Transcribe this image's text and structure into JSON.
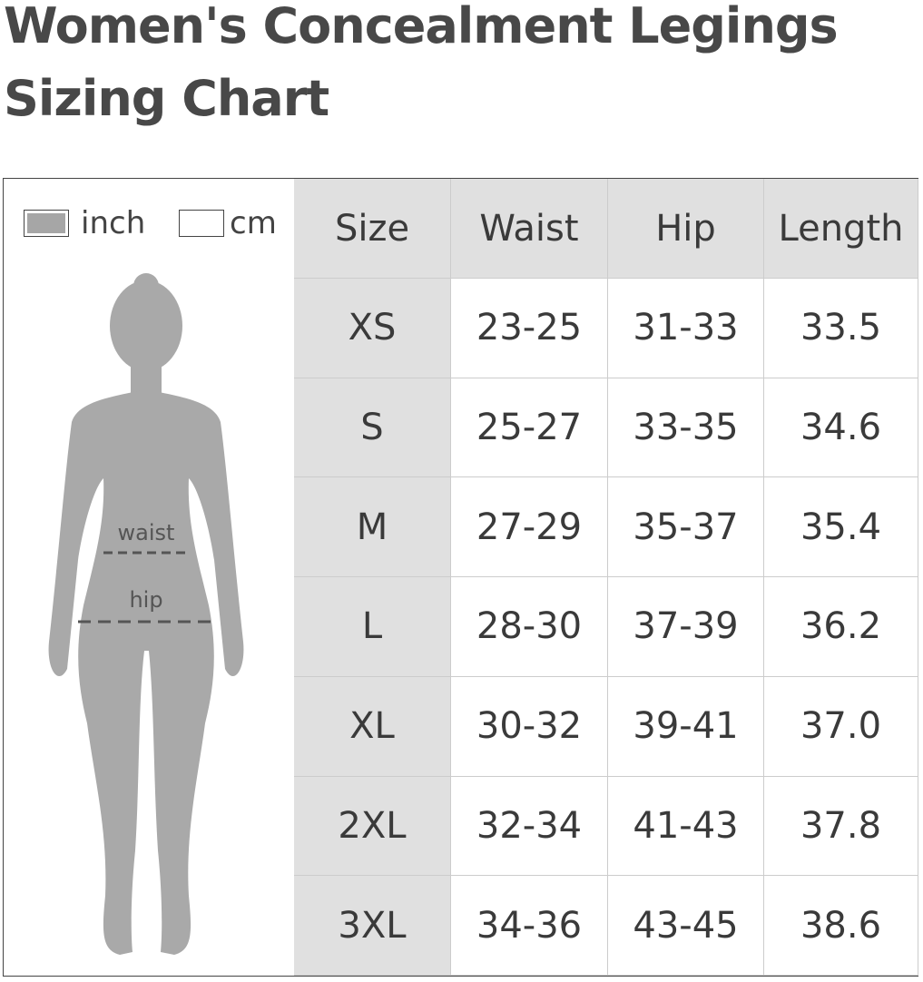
{
  "title_lines": [
    "Women's Concealment Legings",
    "Sizing Chart"
  ],
  "legend": {
    "items": [
      "inch",
      "cm"
    ]
  },
  "figure": {
    "labels": [
      "waist",
      "hip"
    ]
  },
  "table": {
    "header": [
      "Size",
      "Waist",
      "Hip",
      "Length"
    ],
    "rows": [
      [
        "XS",
        "23-25",
        "31-33",
        "33.5"
      ],
      [
        "S",
        "25-27",
        "33-35",
        "34.6"
      ],
      [
        "M",
        "27-29",
        "35-37",
        "35.4"
      ],
      [
        "L",
        "28-30",
        "37-39",
        "36.2"
      ],
      [
        "XL",
        "30-32",
        "39-41",
        "37.0"
      ],
      [
        "2XL",
        "32-34",
        "41-43",
        "37.8"
      ],
      [
        "3XL",
        "34-36",
        "43-45",
        "38.6"
      ]
    ]
  }
}
